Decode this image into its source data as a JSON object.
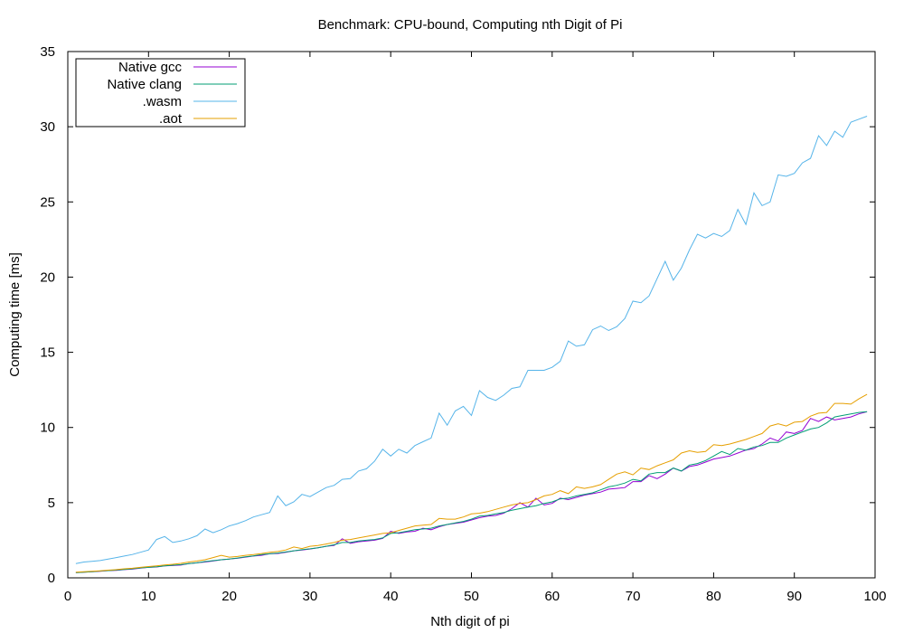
{
  "chart_data": {
    "type": "line",
    "title": "Benchmark: CPU-bound, Computing nth Digit of Pi",
    "xlabel": "Nth digit of pi",
    "ylabel": "Computing time [ms]",
    "xlim": [
      0,
      100
    ],
    "ylim": [
      0,
      35
    ],
    "xticks": [
      0,
      10,
      20,
      30,
      40,
      50,
      60,
      70,
      80,
      90,
      100
    ],
    "yticks": [
      0,
      5,
      10,
      15,
      20,
      25,
      30,
      35
    ],
    "grid": false,
    "legend_position": "top-left",
    "x": [
      1,
      2,
      3,
      4,
      5,
      6,
      7,
      8,
      9,
      10,
      11,
      12,
      13,
      14,
      15,
      16,
      17,
      18,
      19,
      20,
      21,
      22,
      23,
      24,
      25,
      26,
      27,
      28,
      29,
      30,
      31,
      32,
      33,
      34,
      35,
      36,
      37,
      38,
      39,
      40,
      41,
      42,
      43,
      44,
      45,
      46,
      47,
      48,
      49,
      50,
      51,
      52,
      53,
      54,
      55,
      56,
      57,
      58,
      59,
      60,
      61,
      62,
      63,
      64,
      65,
      66,
      67,
      68,
      69,
      70,
      71,
      72,
      73,
      74,
      75,
      76,
      77,
      78,
      79,
      80,
      81,
      82,
      83,
      84,
      85,
      86,
      87,
      88,
      89,
      90,
      91,
      92,
      93,
      94,
      95,
      96,
      97,
      98,
      99
    ],
    "series": [
      {
        "name": "Native gcc",
        "color": "#9400d3",
        "values": [
          0.35,
          0.37,
          0.4,
          0.44,
          0.48,
          0.5,
          0.55,
          0.58,
          0.65,
          0.7,
          0.72,
          0.8,
          0.82,
          0.85,
          0.95,
          1.0,
          1.05,
          1.12,
          1.2,
          1.25,
          1.3,
          1.38,
          1.45,
          1.5,
          1.6,
          1.62,
          1.7,
          1.8,
          1.85,
          1.92,
          2.0,
          2.1,
          2.15,
          2.6,
          2.3,
          2.4,
          2.45,
          2.5,
          2.62,
          3.1,
          2.95,
          3.05,
          3.1,
          3.3,
          3.2,
          3.4,
          3.55,
          3.62,
          3.7,
          3.85,
          4.0,
          4.1,
          4.15,
          4.3,
          4.6,
          5.0,
          4.7,
          5.3,
          4.85,
          4.95,
          5.3,
          5.2,
          5.35,
          5.5,
          5.6,
          5.7,
          5.9,
          5.95,
          6.0,
          6.4,
          6.4,
          6.8,
          6.6,
          6.9,
          7.3,
          7.1,
          7.4,
          7.5,
          7.7,
          7.9,
          8.0,
          8.1,
          8.3,
          8.5,
          8.6,
          8.9,
          9.3,
          9.1,
          9.7,
          9.6,
          9.8,
          10.6,
          10.4,
          10.7,
          10.5,
          10.6,
          10.7,
          10.9,
          11.05
        ]
      },
      {
        "name": "Native clang",
        "color": "#009e73",
        "values": [
          0.35,
          0.38,
          0.41,
          0.45,
          0.48,
          0.52,
          0.56,
          0.6,
          0.66,
          0.7,
          0.74,
          0.8,
          0.84,
          0.88,
          0.95,
          1.0,
          1.08,
          1.14,
          1.2,
          1.25,
          1.32,
          1.4,
          1.46,
          1.55,
          1.6,
          1.65,
          1.72,
          1.8,
          1.87,
          1.93,
          2.0,
          2.1,
          2.2,
          2.35,
          2.35,
          2.45,
          2.5,
          2.55,
          2.65,
          2.95,
          3.0,
          3.1,
          3.2,
          3.25,
          3.3,
          3.45,
          3.55,
          3.65,
          3.75,
          3.9,
          4.1,
          4.15,
          4.25,
          4.35,
          4.5,
          4.6,
          4.7,
          4.8,
          4.95,
          5.05,
          5.25,
          5.3,
          5.45,
          5.55,
          5.65,
          5.85,
          6.05,
          6.15,
          6.3,
          6.55,
          6.45,
          6.9,
          7.0,
          7.0,
          7.3,
          7.1,
          7.5,
          7.6,
          7.8,
          8.1,
          8.4,
          8.2,
          8.6,
          8.5,
          8.7,
          8.8,
          9.0,
          9.0,
          9.3,
          9.5,
          9.7,
          9.9,
          10.0,
          10.3,
          10.7,
          10.8,
          10.9,
          11.0,
          11.05
        ]
      },
      {
        "name": ".wasm",
        "color": "#56b4e9",
        "values": [
          0.95,
          1.05,
          1.1,
          1.15,
          1.25,
          1.35,
          1.45,
          1.55,
          1.7,
          1.85,
          2.55,
          2.75,
          2.35,
          2.45,
          2.6,
          2.8,
          3.25,
          3.0,
          3.2,
          3.45,
          3.6,
          3.8,
          4.05,
          4.2,
          4.35,
          5.45,
          4.8,
          5.05,
          5.55,
          5.4,
          5.7,
          6.0,
          6.15,
          6.55,
          6.6,
          7.1,
          7.25,
          7.75,
          8.55,
          8.1,
          8.55,
          8.3,
          8.8,
          9.05,
          9.3,
          10.95,
          10.15,
          11.1,
          11.4,
          10.8,
          12.45,
          12.0,
          11.8,
          12.15,
          12.6,
          12.7,
          13.8,
          13.8,
          13.8,
          14.0,
          14.4,
          15.75,
          15.4,
          15.5,
          16.5,
          16.75,
          16.45,
          16.7,
          17.25,
          18.4,
          18.3,
          18.75,
          19.9,
          21.05,
          19.8,
          20.6,
          21.8,
          22.85,
          22.6,
          22.9,
          22.7,
          23.1,
          24.5,
          23.5,
          25.6,
          24.75,
          25.0,
          26.8,
          26.7,
          26.9,
          27.6,
          27.9,
          29.4,
          28.75,
          29.7,
          29.3,
          30.3,
          30.5,
          30.7
        ]
      },
      {
        "name": ".aot",
        "color": "#e69f00",
        "values": [
          0.37,
          0.4,
          0.43,
          0.47,
          0.51,
          0.55,
          0.6,
          0.64,
          0.7,
          0.75,
          0.8,
          0.86,
          0.9,
          0.96,
          1.05,
          1.12,
          1.2,
          1.35,
          1.5,
          1.38,
          1.42,
          1.5,
          1.55,
          1.62,
          1.7,
          1.75,
          1.85,
          2.05,
          1.95,
          2.1,
          2.15,
          2.25,
          2.35,
          2.5,
          2.55,
          2.65,
          2.75,
          2.85,
          2.95,
          3.0,
          3.15,
          3.3,
          3.45,
          3.5,
          3.55,
          3.95,
          3.9,
          3.9,
          4.05,
          4.25,
          4.3,
          4.4,
          4.55,
          4.7,
          4.85,
          4.95,
          5.0,
          5.2,
          5.45,
          5.55,
          5.8,
          5.6,
          6.05,
          5.95,
          6.05,
          6.2,
          6.55,
          6.9,
          7.05,
          6.85,
          7.3,
          7.2,
          7.45,
          7.65,
          7.85,
          8.3,
          8.45,
          8.35,
          8.4,
          8.85,
          8.8,
          8.9,
          9.05,
          9.2,
          9.4,
          9.6,
          10.1,
          10.25,
          10.1,
          10.35,
          10.4,
          10.75,
          10.95,
          11.0,
          11.6,
          11.6,
          11.55,
          11.9,
          12.2
        ]
      }
    ]
  }
}
